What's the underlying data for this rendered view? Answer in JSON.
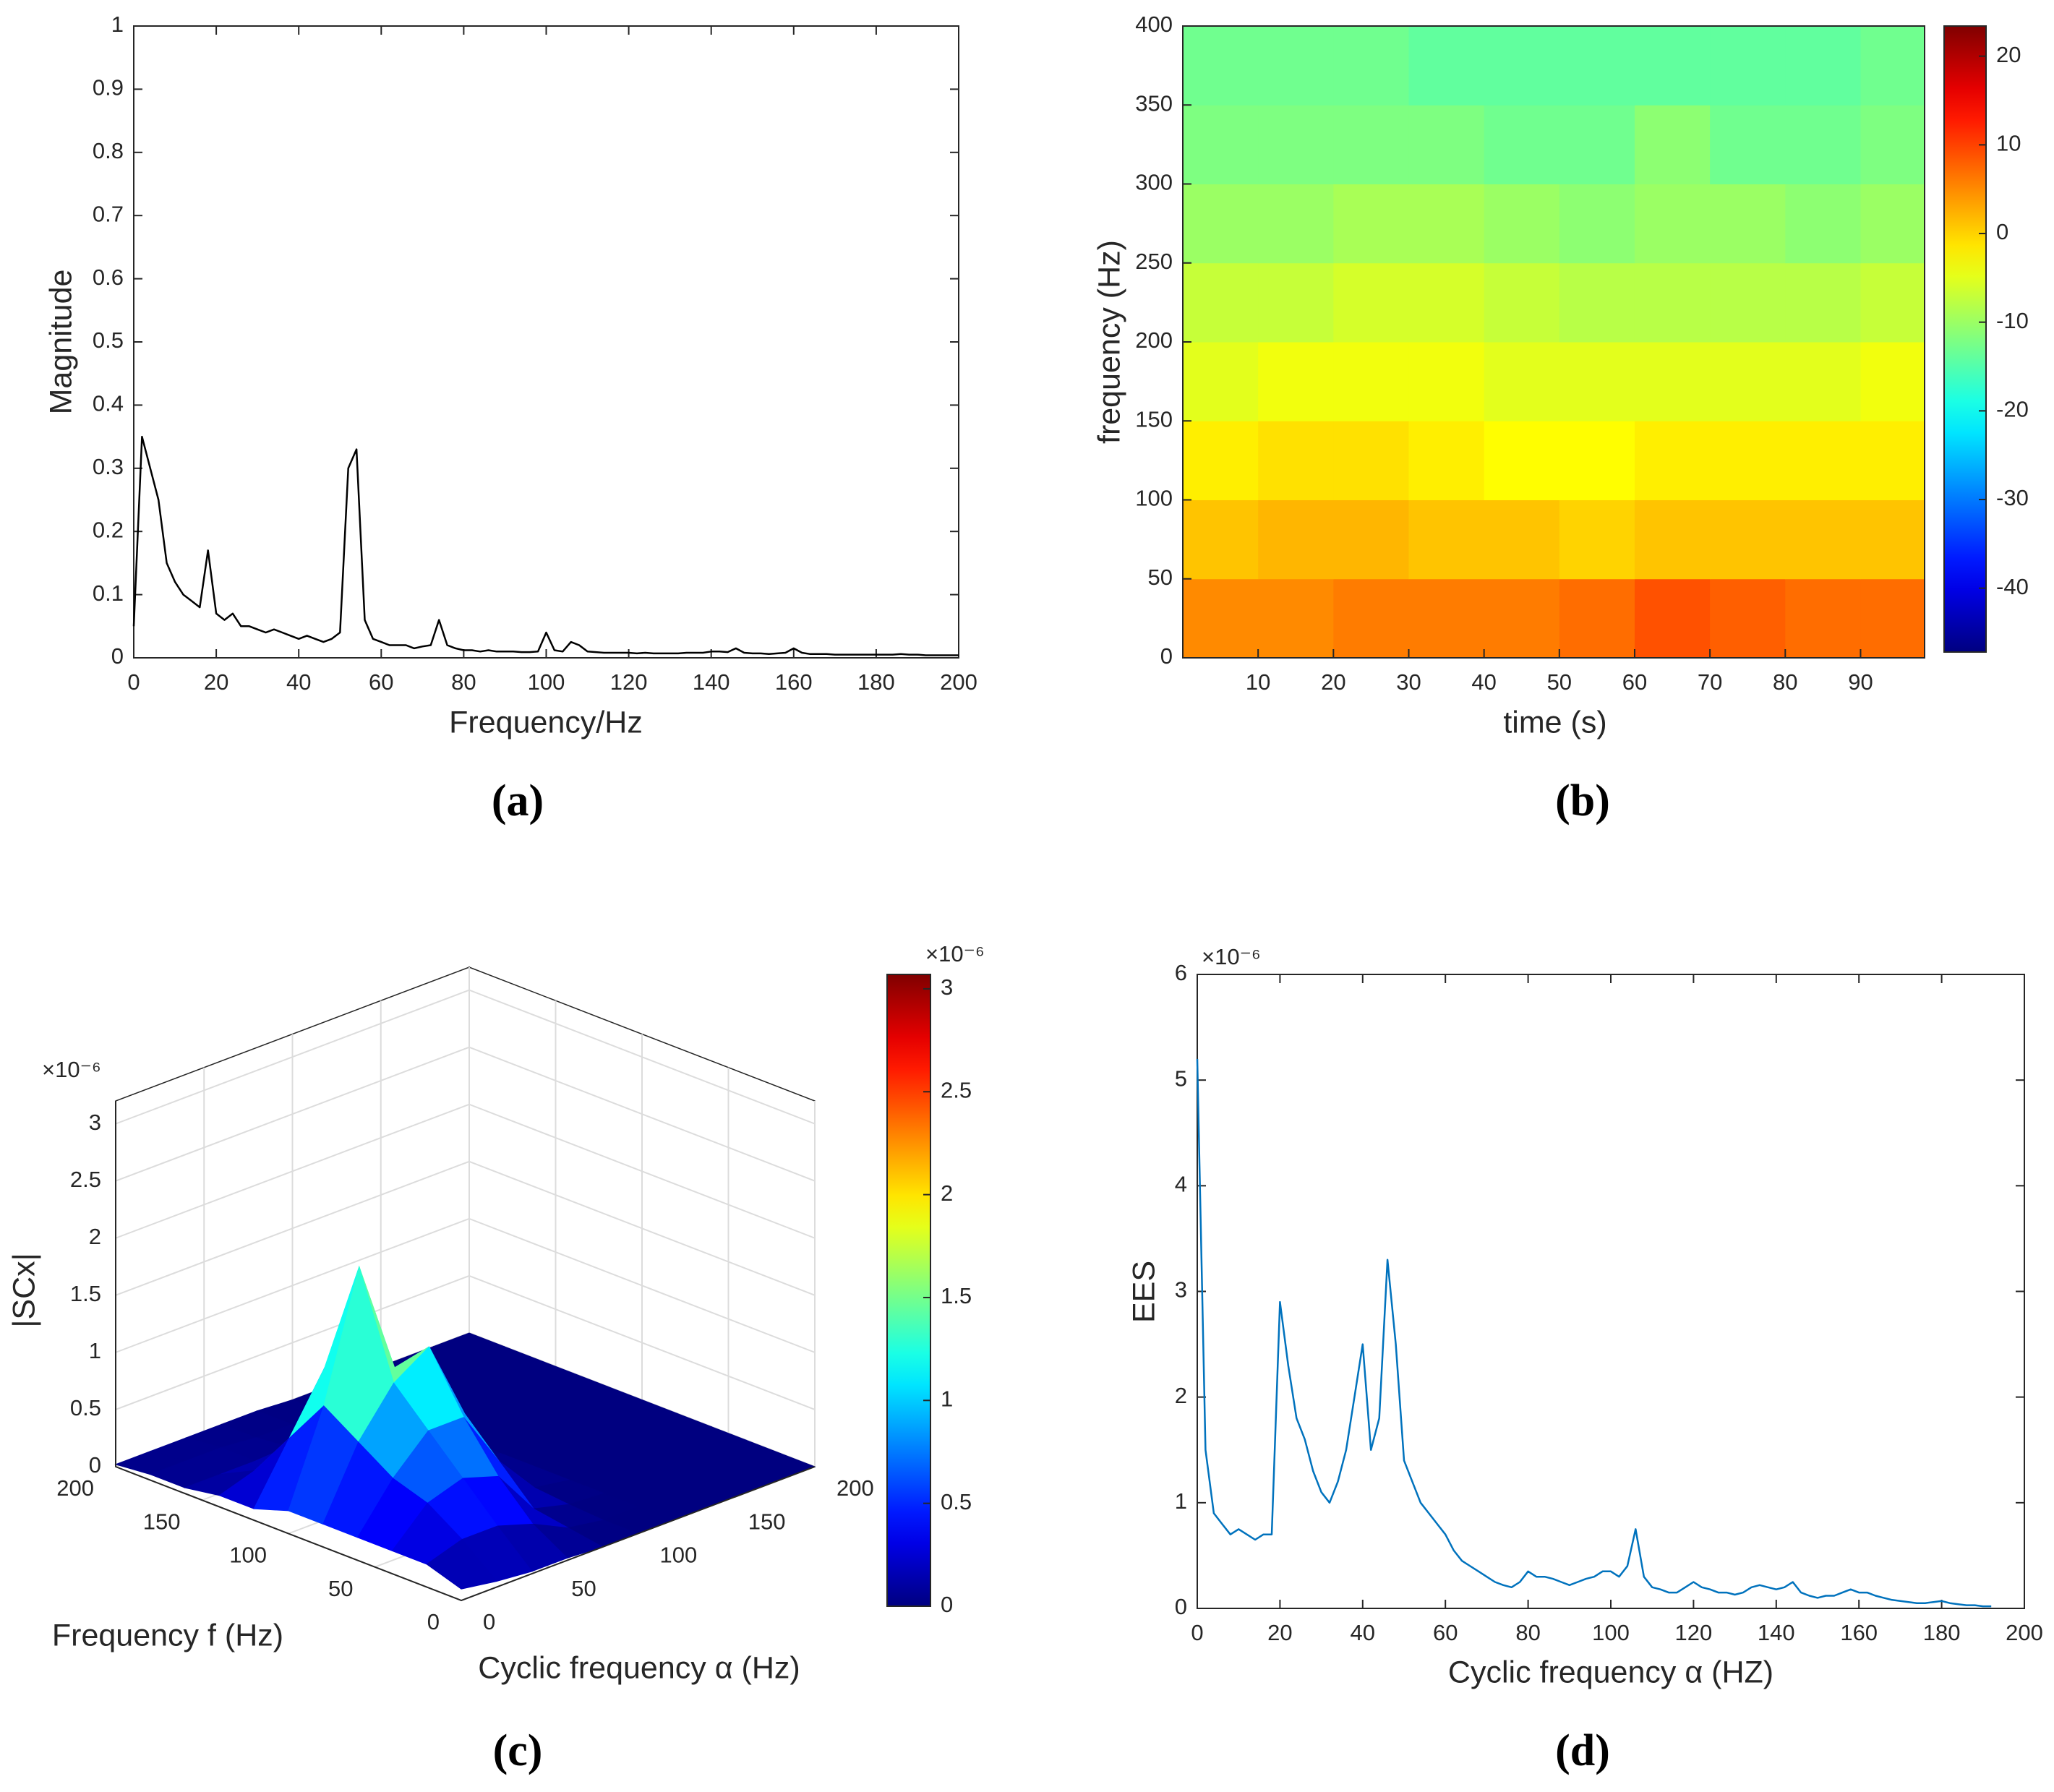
{
  "chart_data": [
    {
      "type": "line",
      "caption": "(a)",
      "xlabel": "Frequency/Hz",
      "ylabel": "Magnitude",
      "color": "#000000",
      "x": [
        0,
        2,
        4,
        6,
        8,
        10,
        12,
        14,
        16,
        18,
        20,
        22,
        24,
        26,
        28,
        30,
        32,
        34,
        36,
        38,
        40,
        42,
        44,
        46,
        48,
        50,
        52,
        54,
        56,
        58,
        60,
        62,
        64,
        66,
        68,
        70,
        72,
        74,
        76,
        78,
        80,
        82,
        84,
        86,
        88,
        90,
        92,
        94,
        96,
        98,
        100,
        102,
        104,
        106,
        108,
        110,
        112,
        114,
        116,
        118,
        120,
        122,
        124,
        126,
        128,
        130,
        132,
        134,
        136,
        138,
        140,
        142,
        144,
        146,
        148,
        150,
        152,
        154,
        156,
        158,
        160,
        162,
        164,
        166,
        168,
        170,
        172,
        174,
        176,
        178,
        180,
        182,
        184,
        186,
        188,
        190,
        192,
        194,
        196,
        198,
        200
      ],
      "values": [
        0.05,
        0.35,
        0.3,
        0.25,
        0.15,
        0.12,
        0.1,
        0.09,
        0.08,
        0.17,
        0.07,
        0.06,
        0.07,
        0.05,
        0.05,
        0.045,
        0.04,
        0.045,
        0.04,
        0.035,
        0.03,
        0.035,
        0.03,
        0.025,
        0.03,
        0.04,
        0.3,
        0.33,
        0.06,
        0.03,
        0.025,
        0.02,
        0.02,
        0.02,
        0.015,
        0.018,
        0.02,
        0.06,
        0.02,
        0.015,
        0.012,
        0.012,
        0.01,
        0.012,
        0.01,
        0.01,
        0.01,
        0.009,
        0.009,
        0.01,
        0.04,
        0.012,
        0.01,
        0.025,
        0.02,
        0.01,
        0.009,
        0.008,
        0.008,
        0.008,
        0.008,
        0.007,
        0.008,
        0.007,
        0.007,
        0.007,
        0.007,
        0.008,
        0.008,
        0.008,
        0.01,
        0.01,
        0.009,
        0.015,
        0.008,
        0.007,
        0.007,
        0.006,
        0.007,
        0.008,
        0.015,
        0.008,
        0.006,
        0.006,
        0.006,
        0.005,
        0.005,
        0.005,
        0.005,
        0.005,
        0.005,
        0.005,
        0.005,
        0.006,
        0.005,
        0.005,
        0.004,
        0.004,
        0.004,
        0.004,
        0.004
      ],
      "xlim": [
        0,
        200
      ],
      "ylim": [
        0,
        1
      ],
      "xticks": [
        0,
        20,
        40,
        60,
        80,
        100,
        120,
        140,
        160,
        180,
        200
      ],
      "yticks": [
        0,
        0.1,
        0.2,
        0.3,
        0.4,
        0.5,
        0.6,
        0.7,
        0.8,
        0.9,
        1
      ]
    },
    {
      "type": "heatmap",
      "caption": "(b)",
      "xlabel": "time (s)",
      "ylabel": "frequency (Hz)",
      "xbins": [
        0,
        10,
        20,
        30,
        40,
        50,
        60,
        70,
        80,
        90,
        98.5
      ],
      "ybins": [
        0,
        50,
        100,
        150,
        200,
        250,
        300,
        350,
        400
      ],
      "z": [
        [
          5,
          5,
          6,
          6,
          6,
          7,
          9,
          8,
          7,
          7
        ],
        [
          1,
          2,
          2,
          1,
          1,
          0,
          1,
          1,
          1,
          1
        ],
        [
          -2,
          -1,
          -1,
          -2,
          -3,
          -3,
          -2,
          -2,
          -2,
          -2
        ],
        [
          -5,
          -4,
          -4,
          -4,
          -5,
          -5,
          -5,
          -5,
          -5,
          -4
        ],
        [
          -7,
          -7,
          -6,
          -6,
          -7,
          -8,
          -8,
          -8,
          -8,
          -7
        ],
        [
          -10,
          -10,
          -9,
          -9,
          -10,
          -11,
          -10,
          -10,
          -11,
          -10
        ],
        [
          -12,
          -12,
          -12,
          -12,
          -13,
          -13,
          -11,
          -13,
          -13,
          -12
        ],
        [
          -13,
          -13,
          -13,
          -14,
          -14,
          -14,
          -14,
          -14,
          -14,
          -13
        ]
      ],
      "xlim": [
        0,
        98.5
      ],
      "ylim": [
        0,
        400
      ],
      "xticks": [
        10,
        20,
        30,
        40,
        50,
        60,
        70,
        80,
        90
      ],
      "yticks": [
        0,
        50,
        100,
        150,
        200,
        250,
        300,
        350,
        400
      ],
      "clim": [
        -47.2,
        23.4
      ],
      "cticks": [
        -40,
        -30,
        -20,
        -10,
        0,
        10,
        20
      ],
      "colormap": "jet"
    },
    {
      "type": "surface",
      "caption": "(c)",
      "xlabel": "Cyclic frequency α (Hz)",
      "ylabel": "Frequency f (Hz)",
      "zlabel": "|SCx|",
      "exponent_label": "×10⁻⁶",
      "colorbar_exponent_label": "×10⁻⁶",
      "f": [
        0,
        20,
        40,
        60,
        80,
        100,
        120,
        140,
        160,
        180,
        200
      ],
      "alpha": [
        0,
        20,
        40,
        60,
        80,
        100,
        120,
        140,
        160,
        180,
        200
      ],
      "z": [
        [
          0.1,
          0.05,
          0.02,
          0.02,
          0,
          0,
          0,
          0,
          0,
          0,
          0
        ],
        [
          0.2,
          0.3,
          0.3,
          0.2,
          0.05,
          0,
          0,
          0,
          0,
          0,
          0
        ],
        [
          0.2,
          0.5,
          0.6,
          0.5,
          0.1,
          0.02,
          0,
          0,
          0,
          0,
          0
        ],
        [
          0.2,
          0.6,
          0.9,
          0.9,
          0.4,
          0.05,
          0,
          0,
          0,
          0,
          0
        ],
        [
          0.2,
          0.8,
          1.2,
          1.4,
          0.7,
          0.1,
          0,
          0,
          0,
          0,
          0
        ],
        [
          0.2,
          1.0,
          2.1,
          1.1,
          0.5,
          0.05,
          0,
          0,
          0,
          0,
          0
        ],
        [
          0.1,
          0.6,
          1.1,
          0.5,
          0.2,
          0.02,
          0,
          0,
          0,
          0,
          0
        ],
        [
          0.1,
          0.2,
          0.3,
          0.2,
          0.05,
          0,
          0,
          0,
          0,
          0,
          0
        ],
        [
          0.05,
          0.05,
          0.05,
          0.05,
          0.02,
          0,
          0,
          0,
          0,
          0,
          0
        ],
        [
          0.05,
          0.05,
          0.05,
          0.02,
          0.02,
          0,
          0,
          0,
          0,
          0,
          0
        ],
        [
          0.02,
          0.02,
          0.02,
          0.02,
          0.02,
          0,
          0,
          0,
          0,
          0,
          0
        ]
      ],
      "flim": [
        0,
        200
      ],
      "alim": [
        0,
        200
      ],
      "zlim": [
        0,
        3.2
      ],
      "fticks": [
        0,
        50,
        100,
        150,
        200
      ],
      "aticks": [
        0,
        50,
        100,
        150,
        200
      ],
      "zticks": [
        0,
        0.5,
        1,
        1.5,
        2,
        2.5,
        3
      ],
      "clim": [
        0,
        3.07
      ],
      "cticks": [
        0,
        0.5,
        1,
        1.5,
        2,
        2.5,
        3
      ],
      "colormap": "jet"
    },
    {
      "type": "line",
      "caption": "(d)",
      "xlabel": "Cyclic frequency α (HZ)",
      "ylabel": "EES",
      "exponent_label": "×10⁻⁶",
      "color": "#0072bd",
      "x": [
        0,
        2,
        4,
        6,
        8,
        10,
        12,
        14,
        16,
        18,
        20,
        22,
        24,
        26,
        28,
        30,
        32,
        34,
        36,
        38,
        40,
        42,
        44,
        46,
        48,
        50,
        52,
        54,
        56,
        58,
        60,
        62,
        64,
        66,
        68,
        70,
        72,
        74,
        76,
        78,
        80,
        82,
        84,
        86,
        88,
        90,
        92,
        94,
        96,
        98,
        100,
        102,
        104,
        106,
        108,
        110,
        112,
        114,
        116,
        118,
        120,
        122,
        124,
        126,
        128,
        130,
        132,
        134,
        136,
        138,
        140,
        142,
        144,
        146,
        148,
        150,
        152,
        154,
        156,
        158,
        160,
        162,
        164,
        166,
        168,
        170,
        172,
        174,
        176,
        178,
        180,
        182,
        184,
        186,
        188,
        190,
        192
      ],
      "values": [
        5.2,
        1.5,
        0.9,
        0.8,
        0.7,
        0.75,
        0.7,
        0.65,
        0.7,
        0.7,
        2.9,
        2.3,
        1.8,
        1.6,
        1.3,
        1.1,
        1.0,
        1.2,
        1.5,
        2.0,
        2.5,
        1.5,
        1.8,
        3.3,
        2.5,
        1.4,
        1.2,
        1.0,
        0.9,
        0.8,
        0.7,
        0.55,
        0.45,
        0.4,
        0.35,
        0.3,
        0.25,
        0.22,
        0.2,
        0.25,
        0.35,
        0.3,
        0.3,
        0.28,
        0.25,
        0.22,
        0.25,
        0.28,
        0.3,
        0.35,
        0.35,
        0.3,
        0.4,
        0.75,
        0.3,
        0.2,
        0.18,
        0.15,
        0.15,
        0.2,
        0.25,
        0.2,
        0.18,
        0.15,
        0.15,
        0.13,
        0.15,
        0.2,
        0.22,
        0.2,
        0.18,
        0.2,
        0.25,
        0.15,
        0.12,
        0.1,
        0.12,
        0.12,
        0.15,
        0.18,
        0.15,
        0.15,
        0.12,
        0.1,
        0.08,
        0.07,
        0.06,
        0.05,
        0.05,
        0.06,
        0.07,
        0.05,
        0.04,
        0.03,
        0.03,
        0.02,
        0.02
      ],
      "xlim": [
        0,
        200
      ],
      "ylim": [
        0,
        6
      ],
      "xticks": [
        0,
        20,
        40,
        60,
        80,
        100,
        120,
        140,
        160,
        180,
        200
      ],
      "yticks": [
        0,
        1,
        2,
        3,
        4,
        5,
        6
      ]
    }
  ]
}
